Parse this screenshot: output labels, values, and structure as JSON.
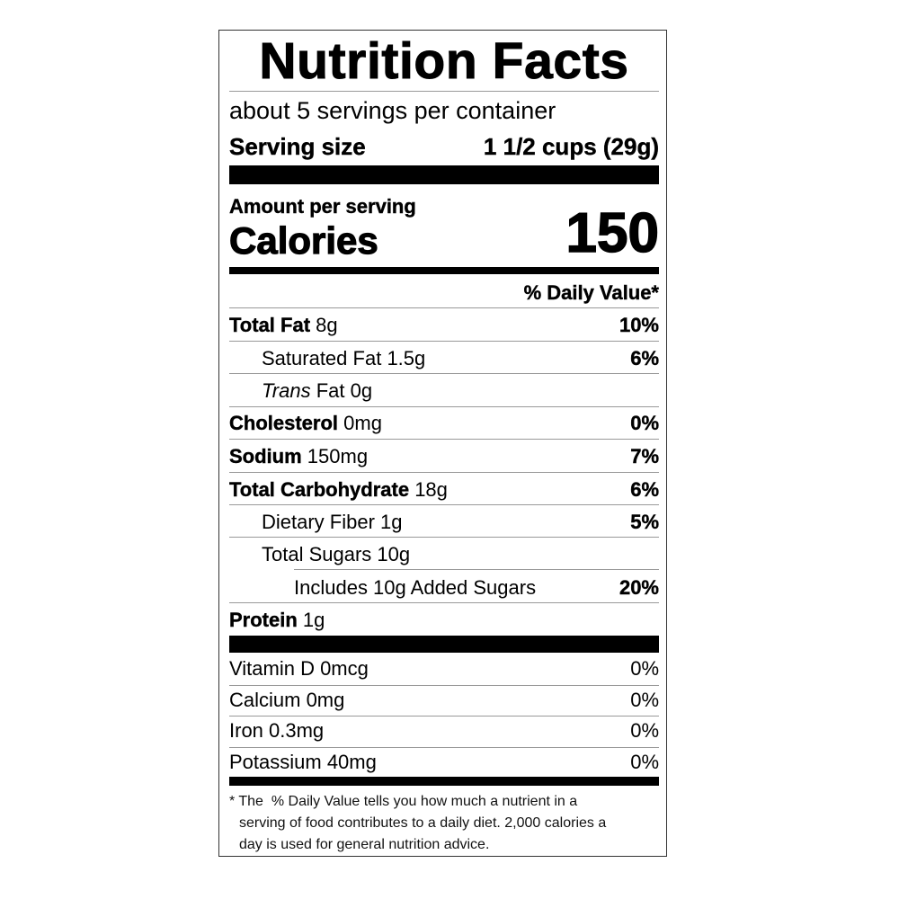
{
  "title": "Nutrition Facts",
  "servings_per_container": "about 5 servings per container",
  "serving_size": {
    "label": "Serving size",
    "value": "1 1/2 cups (29g)"
  },
  "amount_per_serving": "Amount per serving",
  "calories": {
    "label": "Calories",
    "value": "150"
  },
  "daily_value_header": "% Daily Value*",
  "nutrients": [
    {
      "name": "Total Fat",
      "amount": "8g",
      "dv": "10%"
    },
    {
      "name": "Saturated Fat",
      "amount": "1.5g",
      "dv": "6%"
    },
    {
      "name": "Trans",
      "name_rest": "Fat",
      "amount": "0g",
      "dv": ""
    },
    {
      "name": "Cholesterol",
      "amount": "0mg",
      "dv": "0%"
    },
    {
      "name": "Sodium",
      "amount": "150mg",
      "dv": "7%"
    },
    {
      "name": "Total Carbohydrate",
      "amount": "18g",
      "dv": "6%"
    },
    {
      "name": "Dietary Fiber",
      "amount": "1g",
      "dv": "5%"
    },
    {
      "name": "Total Sugars",
      "amount": "10g",
      "dv": ""
    },
    {
      "name": "Includes 10g Added Sugars",
      "amount": "",
      "dv": "20%"
    },
    {
      "name": "Protein",
      "amount": "1g",
      "dv": ""
    }
  ],
  "vitamins": [
    {
      "name": "Vitamin D 0mcg",
      "dv": "0%"
    },
    {
      "name": "Calcium 0mg",
      "dv": "0%"
    },
    {
      "name": "Iron 0.3mg",
      "dv": "0%"
    },
    {
      "name": "Potassium 40mg",
      "dv": "0%"
    }
  ],
  "footnote": {
    "line1": "* The  % Daily Value tells you how much a nutrient in a",
    "line2": "serving of food contributes to a daily diet. 2,000 calories a",
    "line3": "day is used for general nutrition advice."
  }
}
